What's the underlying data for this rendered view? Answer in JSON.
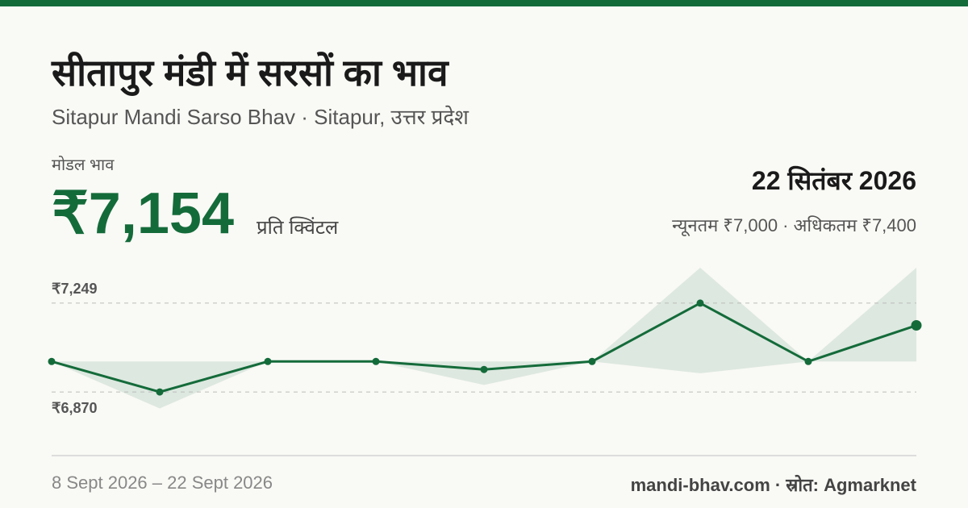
{
  "header": {
    "title": "सीतापुर मंडी में सरसों का भाव",
    "subtitle": "Sitapur Mandi Sarso Bhav · Sitapur, उत्तर प्रदेश"
  },
  "price": {
    "label": "मोडल भाव",
    "value": "₹7,154",
    "unit": "प्रति क्विंटल"
  },
  "date": "22 सितंबर 2026",
  "range_text": "न्यूनतम ₹7,000 · अधिकतम ₹7,400",
  "chart_data": {
    "type": "line",
    "values": [
      7000,
      6870,
      7000,
      7000,
      6966,
      7000,
      7249,
      7000,
      7154
    ],
    "color": "#146b3a",
    "band": {
      "low": [
        7000,
        6800,
        7000,
        7000,
        6900,
        7000,
        6950,
        7000,
        7000
      ],
      "high": [
        7000,
        7000,
        7000,
        7000,
        7000,
        7000,
        7400,
        7000,
        7400
      ],
      "color": "#dde8e0"
    },
    "ylim": [
      6750,
      7400
    ],
    "yticks": [
      {
        "value": 6870,
        "label": "₹6,870"
      },
      {
        "value": 7249,
        "label": "₹7,249"
      }
    ]
  },
  "footer": {
    "range": "8 Sept 2026 – 22 Sept 2026",
    "source": "mandi-bhav.com · स्रोत: Agmarknet"
  }
}
